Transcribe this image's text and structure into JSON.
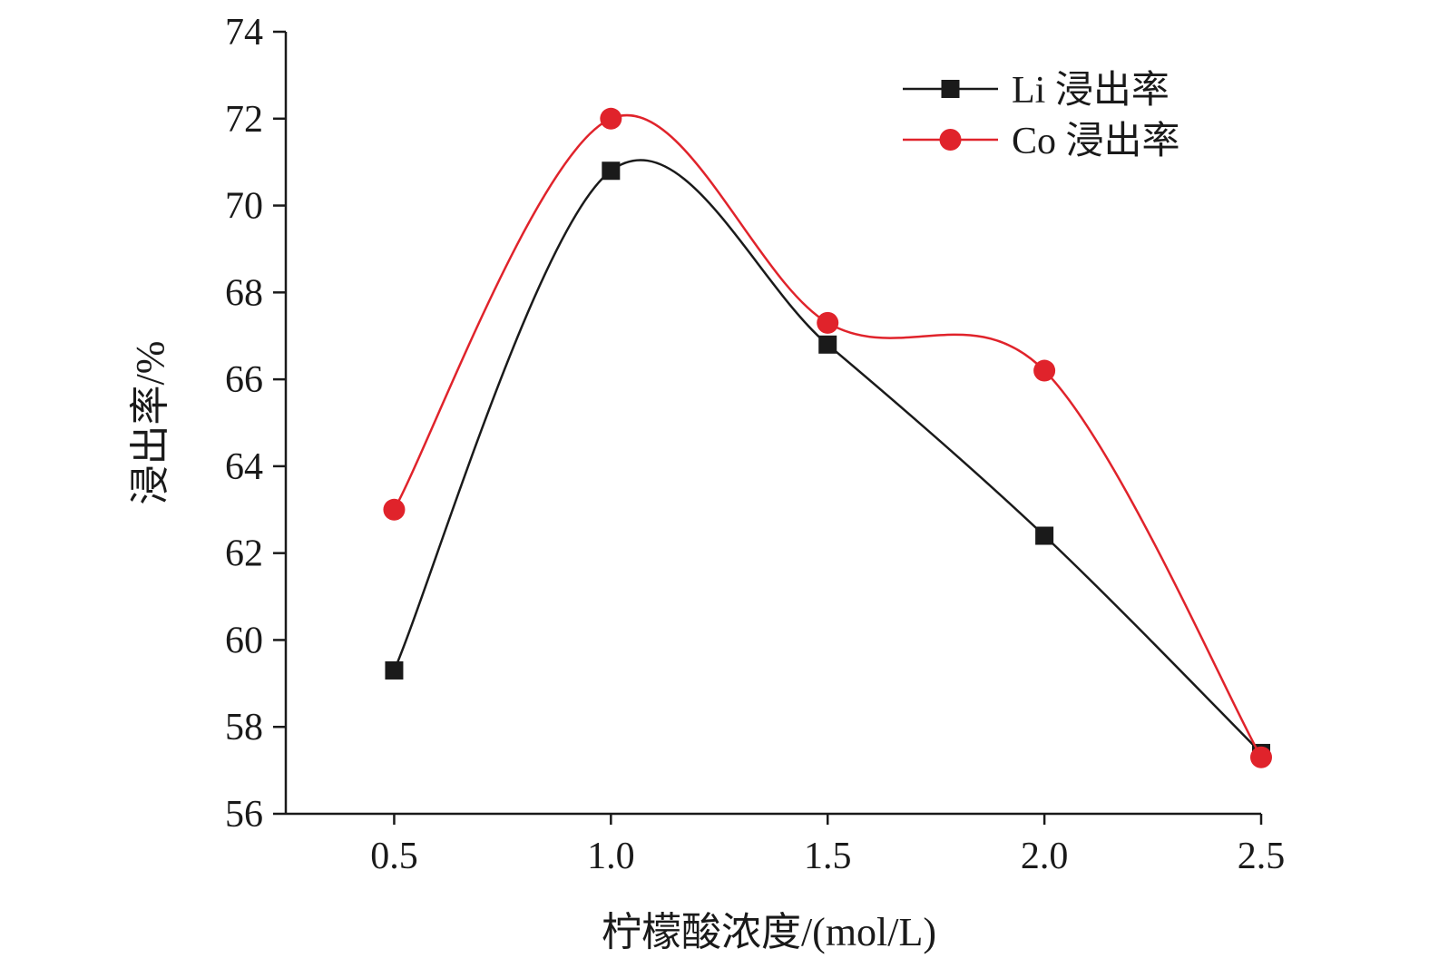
{
  "chart_data": {
    "type": "line",
    "title": "",
    "xlabel": "柠檬酸浓度/(mol/L)",
    "ylabel": "浸出率/%",
    "x": [
      0.5,
      1.0,
      1.5,
      2.0,
      2.5
    ],
    "x_tick_labels": [
      "0.5",
      "1.0",
      "1.5",
      "2.0",
      "2.5"
    ],
    "xlim": [
      0.25,
      2.5
    ],
    "ylim": [
      56,
      74
    ],
    "y_ticks": [
      56,
      58,
      60,
      62,
      64,
      66,
      68,
      70,
      72,
      74
    ],
    "y_tick_labels": [
      "56",
      "58",
      "60",
      "62",
      "64",
      "66",
      "68",
      "70",
      "72",
      "74"
    ],
    "grid": false,
    "legend_position": "top-right",
    "smooth": true,
    "series": [
      {
        "name": "Li 浸出率",
        "marker": "square",
        "color": "#1a1a1a",
        "values": [
          59.3,
          70.8,
          66.8,
          62.4,
          57.4
        ]
      },
      {
        "name": "Co 浸出率",
        "marker": "circle",
        "color": "#e0232b",
        "values": [
          63.0,
          72.0,
          67.3,
          66.2,
          57.3
        ]
      }
    ]
  }
}
